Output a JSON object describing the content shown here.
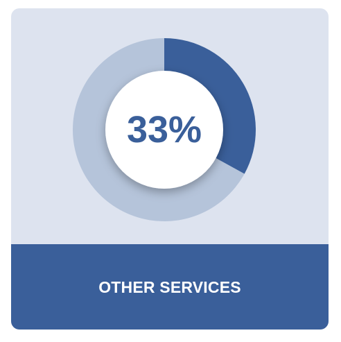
{
  "chart_data": {
    "type": "pie",
    "variant": "donut",
    "values": [
      33,
      67
    ],
    "center_label": "33%",
    "colors": {
      "highlight": "#3a5f9a",
      "remainder": "#b5c4da",
      "center": "#ffffff",
      "text": "#3a5f9a"
    }
  },
  "card": {
    "background": "#dde3ef",
    "footer_label": "OTHER SERVICES",
    "footer_color": "#3a5f9a"
  }
}
